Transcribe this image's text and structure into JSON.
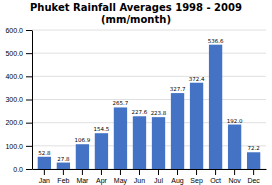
{
  "chart_data": {
    "type": "bar",
    "title": "Phuket Rainfall Averages 1998 - 2009\n(mm/month)",
    "categories": [
      "Jan",
      "Feb",
      "Mar",
      "Apr",
      "May",
      "Jun",
      "Jul",
      "Aug",
      "Sep",
      "Oct",
      "Nov",
      "Dec"
    ],
    "values": [
      52.8,
      27.8,
      106.9,
      154.5,
      265.7,
      227.6,
      223.8,
      327.7,
      372.4,
      536.6,
      192.0,
      72.2
    ],
    "value_labels": [
      "52.8",
      "27.8",
      "106.9",
      "154.5",
      "265.7",
      "227.6",
      "223.8",
      "327.7",
      "372.4",
      "536.6",
      "192.0",
      "72.2"
    ],
    "color": "#4472C4",
    "ylim": [
      0,
      600
    ],
    "yticks": [
      {
        "value": 0,
        "label": "0.0"
      },
      {
        "value": 100,
        "label": "100.0"
      },
      {
        "value": 200,
        "label": "200.0"
      },
      {
        "value": 300,
        "label": "300.0"
      },
      {
        "value": 400,
        "label": "400.0"
      },
      {
        "value": 500,
        "label": "500.0"
      },
      {
        "value": 600,
        "label": "600.0"
      }
    ],
    "grid": true,
    "data_labels": true
  }
}
